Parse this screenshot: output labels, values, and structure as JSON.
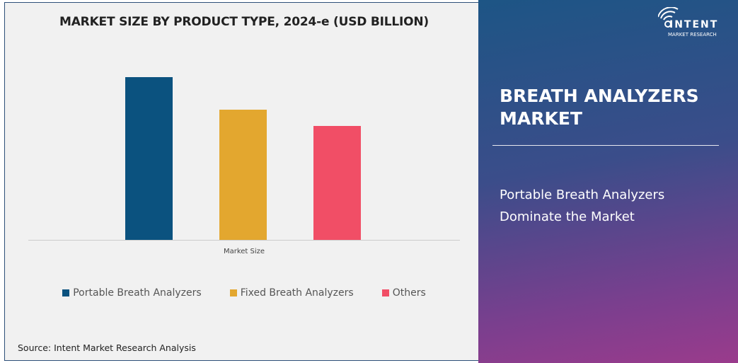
{
  "chart_data": {
    "type": "bar",
    "title": "MARKET SIZE BY PRODUCT TYPE, 2024-e (USD BILLION)",
    "categories": [
      "Market Size"
    ],
    "series": [
      {
        "name": "Portable Breath Analyzers",
        "values": [
          1.0
        ],
        "color": "#0b527f"
      },
      {
        "name": "Fixed Breath Analyzers",
        "values": [
          0.8
        ],
        "color": "#e3a72f"
      },
      {
        "name": "Others",
        "values": [
          0.7
        ],
        "color": "#f14e66"
      }
    ],
    "ylim": [
      0,
      1.0
    ],
    "grid": false,
    "legend": "bottom",
    "value_note_units": "relative (no axis shown)"
  },
  "source": "Source: Intent Market Research Analysis",
  "panel": {
    "heading": "BREATH ANALYZERS MARKET",
    "subheading": "Portable Breath Analyzers Dominate the Market"
  },
  "logo": {
    "name": "INTENT",
    "tagline": "MARKET RESEARCH",
    "tm": "TM"
  }
}
